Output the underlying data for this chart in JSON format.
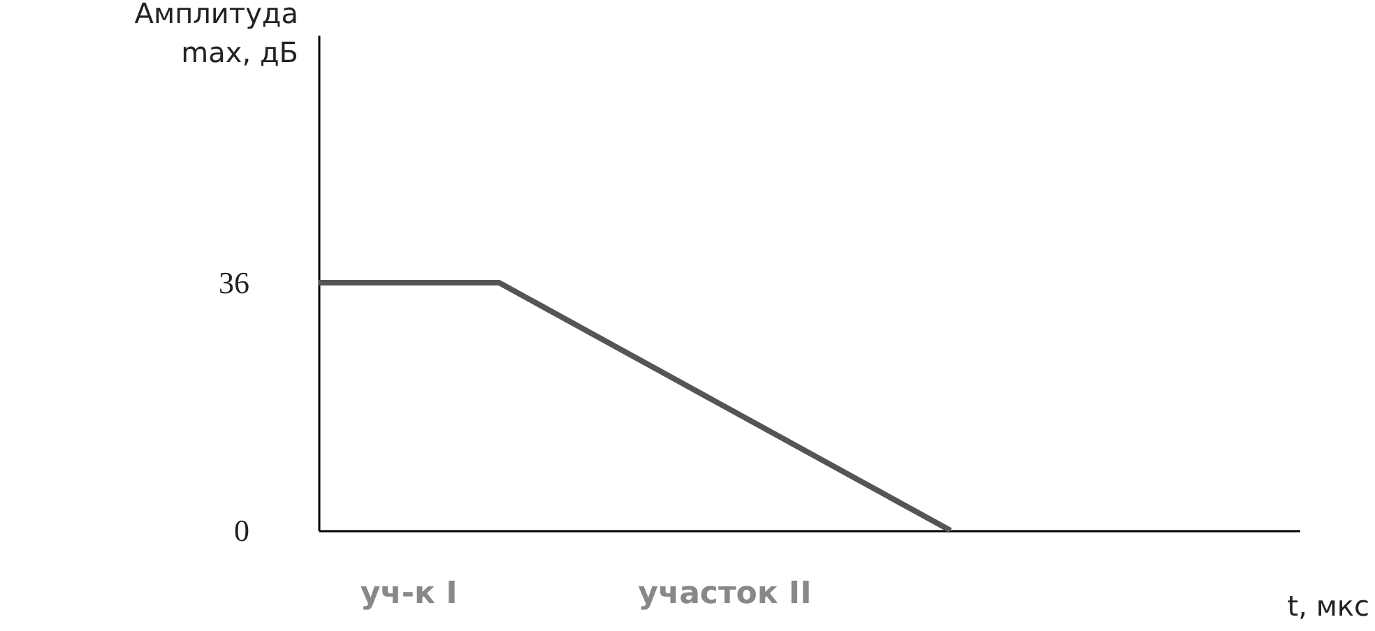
{
  "chart_data": {
    "type": "line",
    "ylabel": "Амплитуда max, дБ",
    "categories": [
      null,
      null,
      null,
      null,
      null,
      null,
      null,
      null
    ],
    "values": [
      36,
      36,
      36,
      28.8,
      21.6,
      14.4,
      7.2,
      0
    ],
    "color": "#555555",
    "ylim": [
      0,
      72
    ],
    "yticks": [
      0,
      36
    ],
    "tick_labels": "y",
    "grid": false,
    "annotations": [
      "уч-к I",
      "участок II",
      "t, мкс"
    ]
  }
}
